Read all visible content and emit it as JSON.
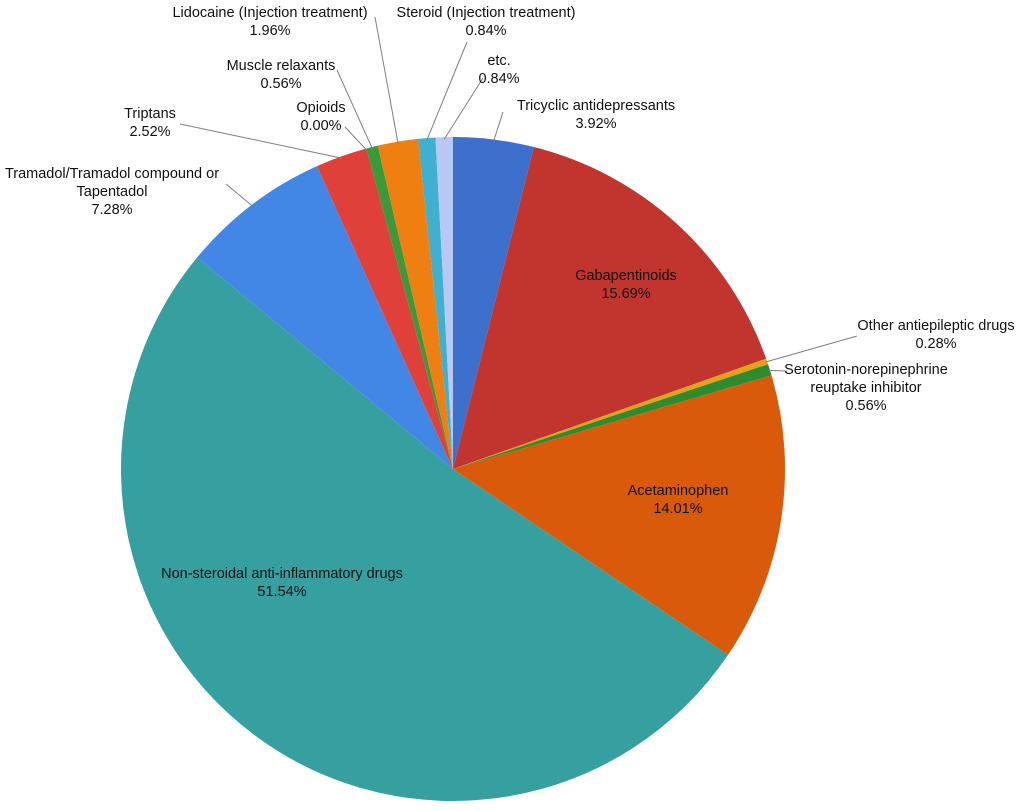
{
  "chart_data": {
    "type": "pie",
    "title": "",
    "slices": [
      {
        "label": [
          "Tricyclic antidepressants"
        ],
        "value": 3.92,
        "display": "3.92%",
        "color": "#3D6FCD"
      },
      {
        "label": [
          "Gabapentinoids"
        ],
        "value": 15.69,
        "display": "15.69%",
        "color": "#C2342E"
      },
      {
        "label": [
          "Other antiepileptic drugs"
        ],
        "value": 0.28,
        "display": "0.28%",
        "color": "#E3A21A"
      },
      {
        "label": [
          "Serotonin-norepinephrine",
          "reuptake inhibitor"
        ],
        "value": 0.56,
        "display": "0.56%",
        "color": "#2E8B2E"
      },
      {
        "label": [
          "Acetaminophen"
        ],
        "value": 14.01,
        "display": "14.01%",
        "color": "#D95A0B"
      },
      {
        "label": [
          "Non-steroidal anti-inflammatory drugs"
        ],
        "value": 51.54,
        "display": "51.54%",
        "color": "#36A0A0"
      },
      {
        "label": [
          "Tramadol/Tramadol compound or",
          "Tapentadol"
        ],
        "value": 7.28,
        "display": "7.28%",
        "color": "#4287E6"
      },
      {
        "label": [
          "Triptans"
        ],
        "value": 2.52,
        "display": "2.52%",
        "color": "#E0403A"
      },
      {
        "label": [
          "Opioids"
        ],
        "value": 0.0,
        "display": "0.00%",
        "color": "#8E44AD"
      },
      {
        "label": [
          "Muscle relaxants"
        ],
        "value": 0.56,
        "display": "0.56%",
        "color": "#3A9A3A"
      },
      {
        "label": [
          "Lidocaine (Injection treatment)"
        ],
        "value": 1.96,
        "display": "1.96%",
        "color": "#F07F12"
      },
      {
        "label": [
          "Steroid (Injection treatment)"
        ],
        "value": 0.84,
        "display": "0.84%",
        "color": "#3FB0CF"
      },
      {
        "label": [
          "etc."
        ],
        "value": 0.84,
        "display": "0.84%",
        "color": "#B9C8F2"
      }
    ]
  }
}
